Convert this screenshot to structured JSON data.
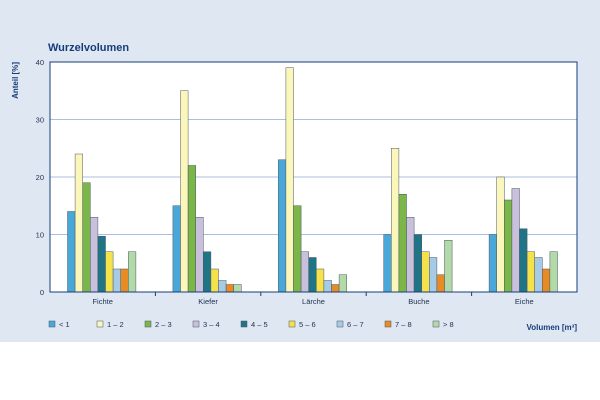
{
  "chart_data": {
    "type": "bar",
    "title": "Wurzelvolumen",
    "ylabel": "Anteil [%]",
    "xlabel": "Volumen [m³]",
    "categories": [
      "Fichte",
      "Kiefer",
      "Lärche",
      "Buche",
      "Eiche"
    ],
    "ylim": [
      0,
      40
    ],
    "yticks": [
      0,
      10,
      20,
      30,
      40
    ],
    "grid": true,
    "legend_position": "bottom",
    "series": [
      {
        "name": "< 1",
        "color": "#4aa8d8",
        "values": [
          14,
          15,
          23,
          10,
          10
        ]
      },
      {
        "name": "1 – 2",
        "color": "#fbf6b9",
        "values": [
          24,
          35,
          39,
          25,
          20
        ]
      },
      {
        "name": "2 – 3",
        "color": "#7ab648",
        "values": [
          19,
          22,
          15,
          17,
          16
        ]
      },
      {
        "name": "3 – 4",
        "color": "#c9c0dc",
        "values": [
          13,
          13,
          7,
          13,
          18
        ]
      },
      {
        "name": "4 – 5",
        "color": "#1f7585",
        "values": [
          9.7,
          7,
          6,
          10,
          11
        ]
      },
      {
        "name": "5 – 6",
        "color": "#f5e24a",
        "values": [
          7,
          4,
          4,
          7,
          7
        ]
      },
      {
        "name": "6 – 7",
        "color": "#a6cbe6",
        "values": [
          4,
          2,
          2,
          6,
          6
        ]
      },
      {
        "name": "7 – 8",
        "color": "#e88b25",
        "values": [
          4,
          1.3,
          1.3,
          3,
          4
        ]
      },
      {
        "name": "> 8",
        "color": "#b2d9a8",
        "values": [
          7,
          1.3,
          3,
          9,
          7
        ]
      }
    ]
  }
}
